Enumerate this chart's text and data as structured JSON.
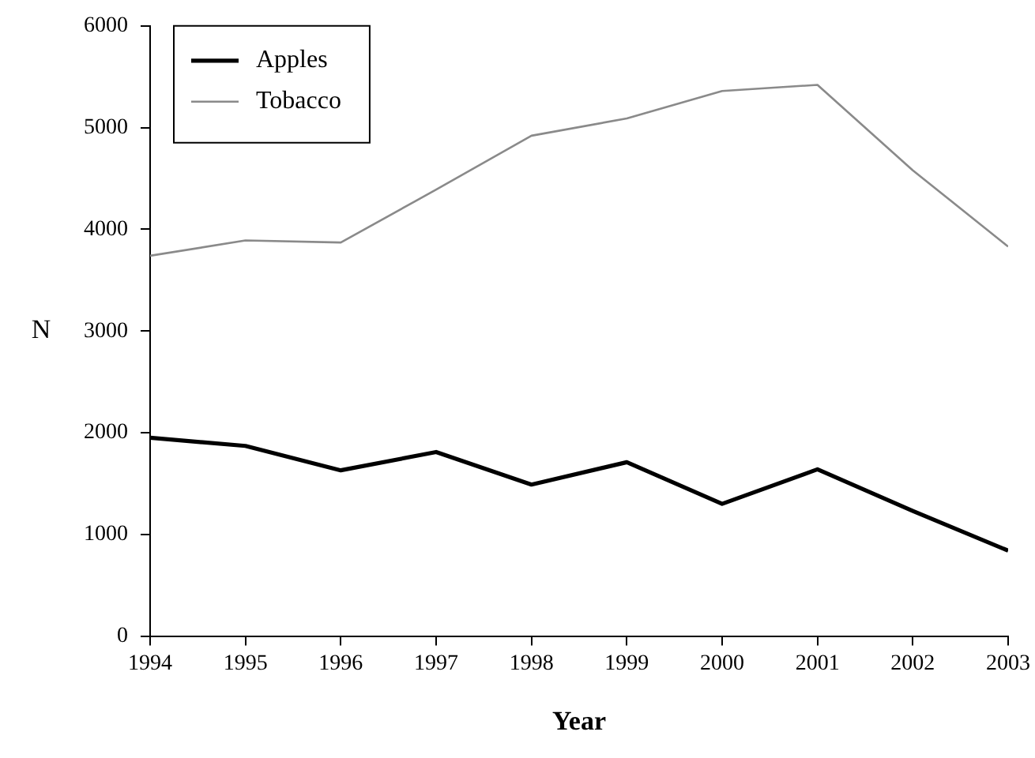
{
  "chart_data": {
    "type": "line",
    "xlabel": "Year",
    "ylabel": "N",
    "x": [
      1994,
      1995,
      1996,
      1997,
      1998,
      1999,
      2000,
      2001,
      2002,
      2003
    ],
    "series": [
      {
        "name": "Apples",
        "color": "#000000",
        "values": [
          1950,
          1870,
          1630,
          1810,
          1490,
          1710,
          1300,
          1640,
          1230,
          840
        ]
      },
      {
        "name": "Tobacco",
        "color": "#8a8a8a",
        "values": [
          3740,
          3890,
          3870,
          4390,
          4920,
          5090,
          5360,
          5420,
          4580,
          3830
        ]
      }
    ],
    "xlim": [
      1994,
      2003
    ],
    "xticks": [
      1994,
      1995,
      1996,
      1997,
      1998,
      1999,
      2000,
      2001,
      2002,
      2003
    ],
    "ylim": [
      0,
      6000
    ],
    "yticks": [
      0,
      1000,
      2000,
      3000,
      4000,
      5000,
      6000
    ],
    "grid": false,
    "legend": "top left",
    "marker": "none",
    "line_style": "solid"
  }
}
